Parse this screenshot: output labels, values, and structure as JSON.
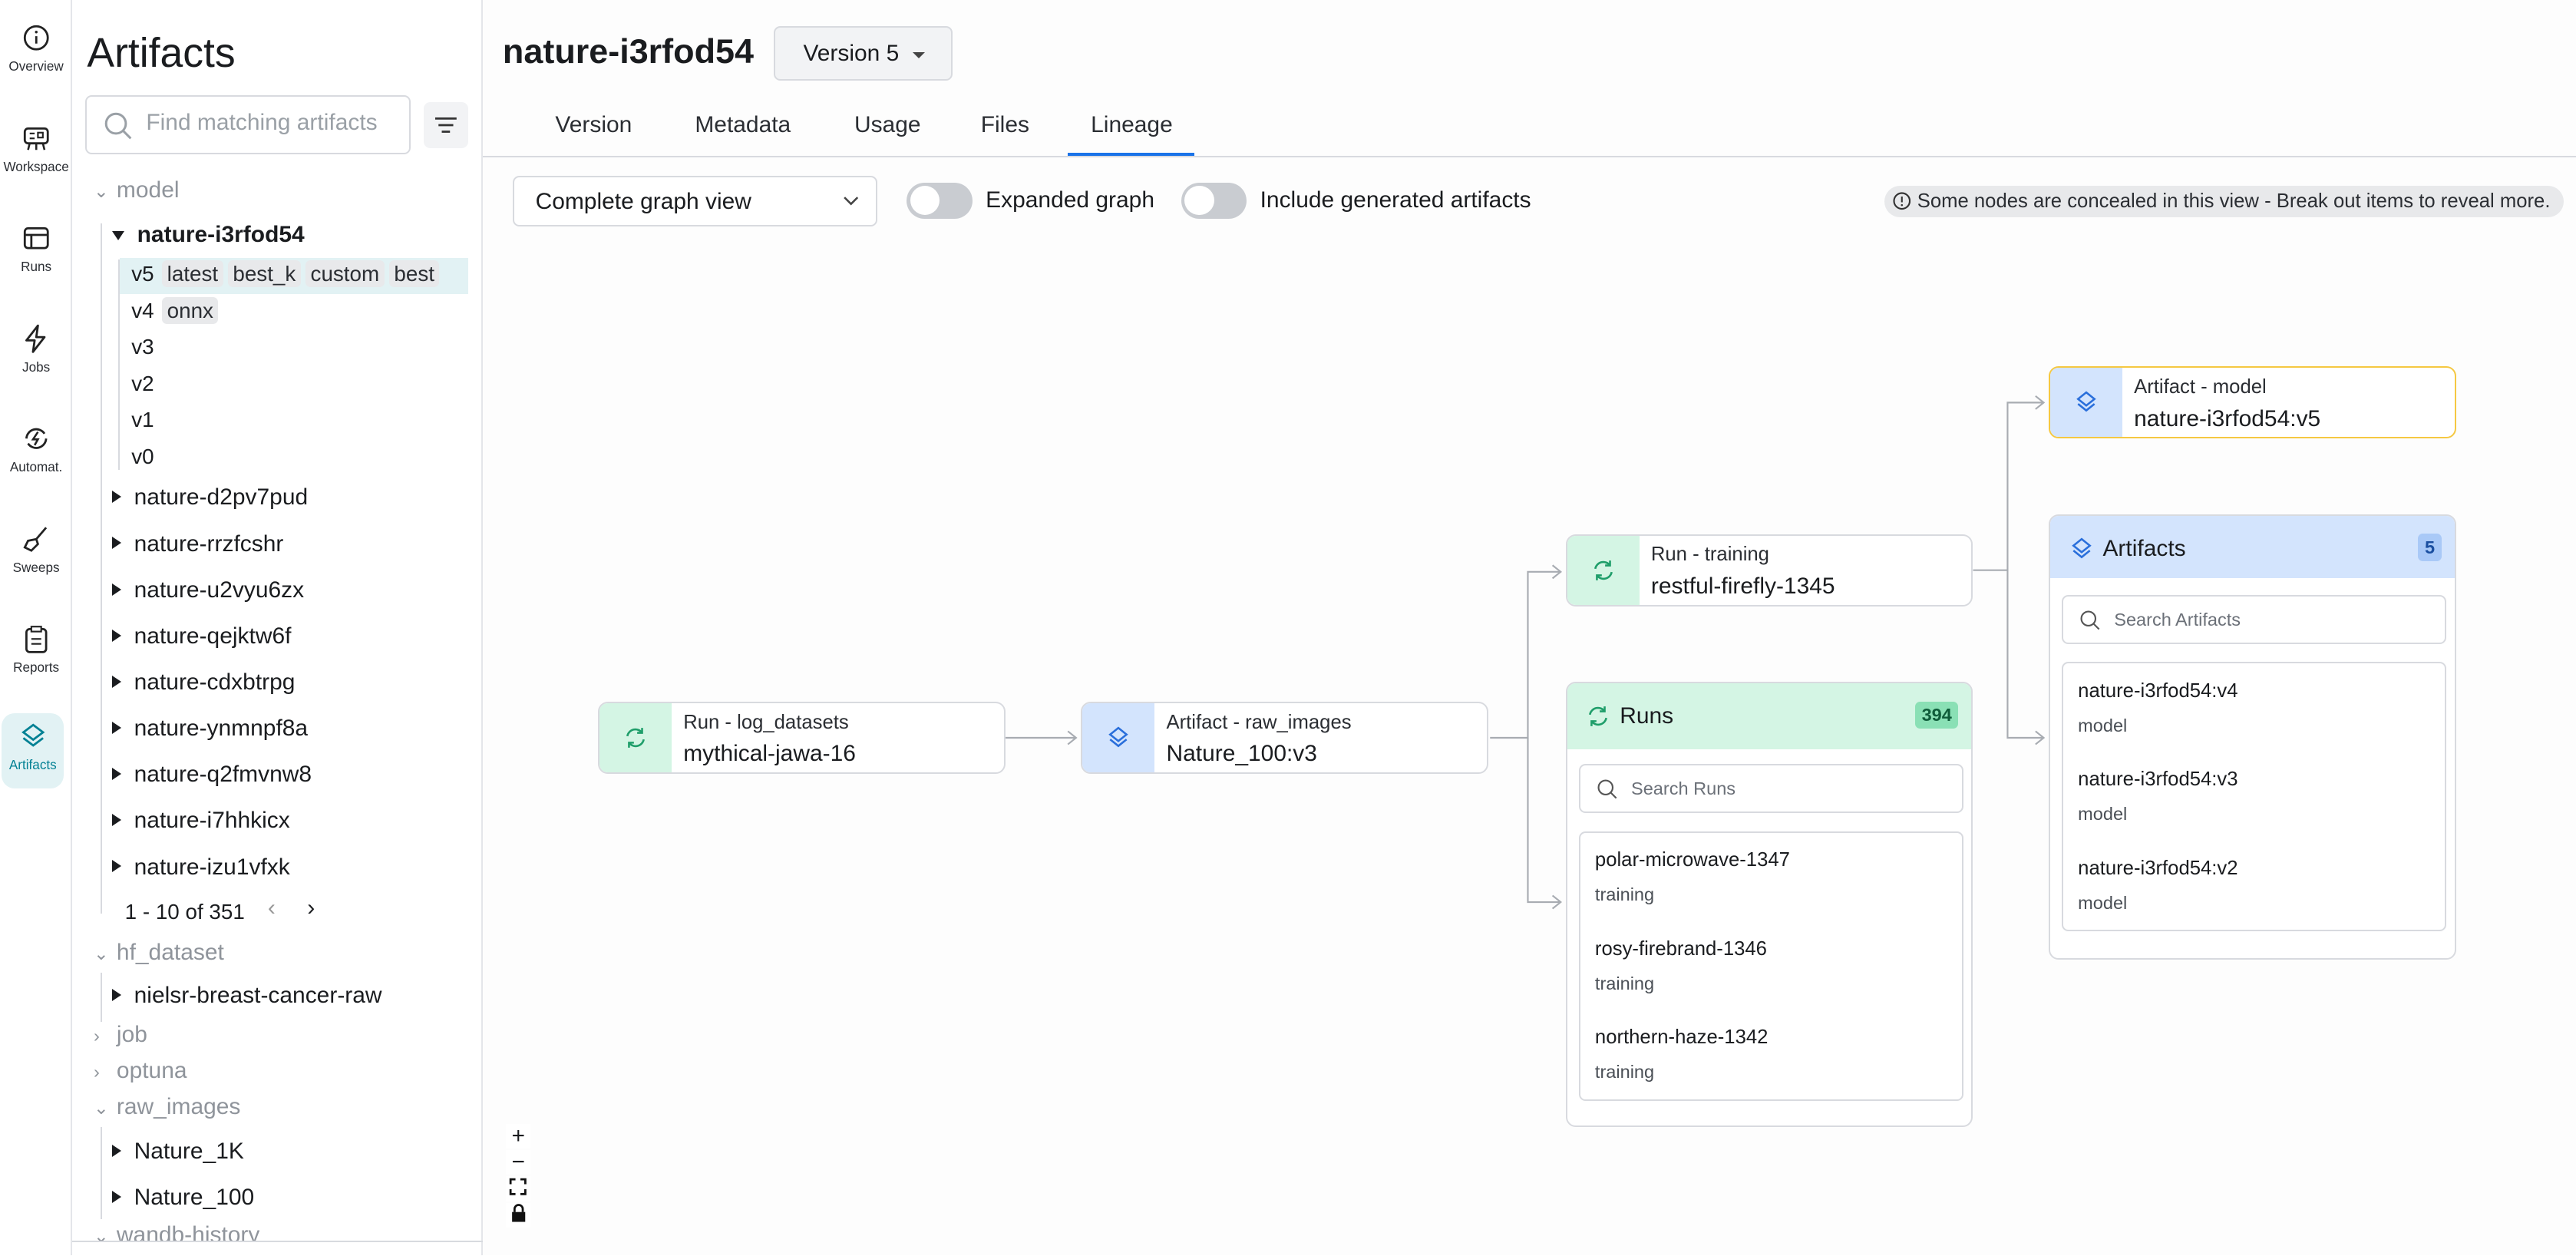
{
  "rail": [
    {
      "label": "Overview",
      "icon": "info-icon"
    },
    {
      "label": "Workspace",
      "icon": "workspace-icon"
    },
    {
      "label": "Runs",
      "icon": "runs-icon"
    },
    {
      "label": "Jobs",
      "icon": "lightning-icon"
    },
    {
      "label": "Automat.",
      "icon": "automation-icon"
    },
    {
      "label": "Sweeps",
      "icon": "broom-icon"
    },
    {
      "label": "Reports",
      "icon": "clipboard-icon"
    },
    {
      "label": "Artifacts",
      "icon": "layers-icon",
      "active": true
    }
  ],
  "sidebar": {
    "title": "Artifacts",
    "search_placeholder": "Find matching artifacts",
    "groups": {
      "model": "model",
      "selected": "nature-i3rfod54",
      "versions": [
        {
          "v": "v5",
          "tags": [
            "latest",
            "best_k",
            "custom",
            "best"
          ]
        },
        {
          "v": "v4",
          "tags": [
            "onnx"
          ]
        },
        {
          "v": "v3",
          "tags": []
        },
        {
          "v": "v2",
          "tags": []
        },
        {
          "v": "v1",
          "tags": []
        },
        {
          "v": "v0",
          "tags": []
        }
      ],
      "others": [
        "nature-d2pv7pud",
        "nature-rrzfcshr",
        "nature-u2vyu6zx",
        "nature-qejktw6f",
        "nature-cdxbtrpg",
        "nature-ynmnpf8a",
        "nature-q2fmvnw8",
        "nature-i7hhkicx",
        "nature-izu1vfxk"
      ],
      "pagination": "1 - 10 of 351",
      "hf_dataset": "hf_dataset",
      "hf_items": [
        "nielsr-breast-cancer-raw"
      ],
      "job": "job",
      "optuna": "optuna",
      "raw_images": "raw_images",
      "raw_items": [
        "Nature_1K",
        "Nature_100"
      ],
      "wandb": "wandb-history"
    }
  },
  "header": {
    "title": "nature-i3rfod54",
    "version": "Version 5"
  },
  "tabs": [
    "Version",
    "Metadata",
    "Usage",
    "Files",
    "Lineage"
  ],
  "active_tab": "Lineage",
  "toolbar": {
    "view": "Complete graph view",
    "expanded": "Expanded graph",
    "expanded_on": false,
    "generated": "Include generated artifacts",
    "generated_on": false,
    "notice": "Some nodes are concealed in this view - Break out items to reveal more."
  },
  "graph": {
    "n1": {
      "type": "Run - log_datasets",
      "name": "mythical-jawa-16"
    },
    "n2": {
      "type": "Artifact - raw_images",
      "name": "Nature_100:v3"
    },
    "n3": {
      "type": "Run - training",
      "name": "restful-firefly-1345"
    },
    "n4": {
      "type": "Artifact - model",
      "name": "nature-i3rfod54:v5"
    },
    "runs": {
      "title": "Runs",
      "count": "394",
      "search": "Search Runs",
      "items": [
        {
          "name": "polar-microwave-1347",
          "sub": "training"
        },
        {
          "name": "rosy-firebrand-1346",
          "sub": "training"
        },
        {
          "name": "northern-haze-1342",
          "sub": "training"
        }
      ]
    },
    "artifacts": {
      "title": "Artifacts",
      "count": "5",
      "search": "Search Artifacts",
      "items": [
        {
          "name": "nature-i3rfod54:v4",
          "sub": "model"
        },
        {
          "name": "nature-i3rfod54:v3",
          "sub": "model"
        },
        {
          "name": "nature-i3rfod54:v2",
          "sub": "model"
        }
      ]
    }
  },
  "controls": {
    "zoom_in": "+",
    "zoom_out": "−"
  },
  "colors": {
    "accent": "#038194",
    "run": "#d4f5e4",
    "artifact": "#d3e4fd",
    "highlight": "#f5c842",
    "tab_active": "#1a73e8"
  }
}
